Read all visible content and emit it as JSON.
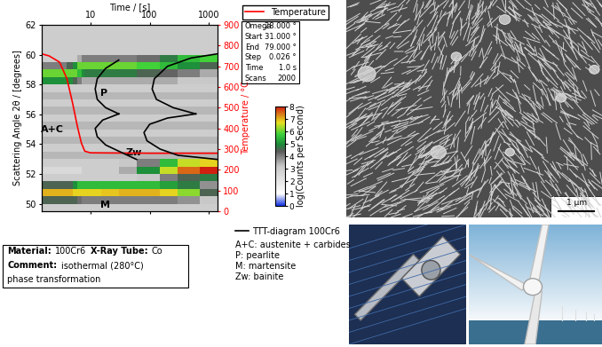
{
  "chart_data": {
    "type": "heatmap",
    "x_label": "Time / [s]",
    "y_label": "Scattering Angle 2θ / [degrees]",
    "y2_label": "Temperature / °C",
    "log": "x",
    "xlim": [
      1.5,
      1400
    ],
    "xticks": [
      10,
      100,
      1000
    ],
    "ylim": [
      49.5,
      62
    ],
    "yticks": [
      50,
      52,
      54,
      56,
      58,
      60,
      62
    ],
    "y2lim": [
      0,
      900
    ],
    "y2ticks": [
      0,
      100,
      200,
      300,
      400,
      500,
      600,
      700,
      800,
      900
    ],
    "heatmap": {
      "x_edges": [
        1.5,
        2,
        3,
        4,
        5,
        6,
        7,
        8,
        10,
        15,
        30,
        60,
        150,
        300,
        700,
        1400
      ],
      "y_edges": [
        49.5,
        50,
        50.5,
        51,
        51.5,
        52,
        52.5,
        53,
        53.5,
        54,
        54.5,
        55,
        55.5,
        56,
        56.5,
        57,
        57.5,
        58,
        58.5,
        59,
        59.5,
        60,
        60.5,
        61,
        61.5,
        62
      ],
      "cells": [
        [
          3,
          3,
          3,
          3,
          3,
          3,
          3,
          3,
          3,
          3,
          3,
          3,
          3,
          3,
          3
        ],
        [
          4.5,
          4.5,
          4.5,
          4.5,
          4.5,
          4.2,
          4,
          4,
          4,
          4,
          4,
          4,
          4,
          3.8,
          3.2
        ],
        [
          7,
          7,
          7,
          7,
          6.8,
          6.8,
          6.8,
          6.8,
          6.8,
          6.9,
          7,
          7,
          6.8,
          6.2,
          4.5
        ],
        [
          4.5,
          4.5,
          4.5,
          4.5,
          5,
          5.5,
          5.5,
          5.5,
          5.5,
          5.5,
          5.5,
          5.5,
          5.2,
          4.8,
          3.8
        ],
        [
          3,
          3,
          3,
          3,
          3,
          3,
          3,
          3,
          3,
          3,
          3,
          3.2,
          4,
          4.5,
          4.8
        ],
        [
          2.5,
          2.5,
          2.5,
          2.5,
          2.5,
          2.5,
          3,
          3,
          3,
          3,
          3.5,
          5,
          6.5,
          7.5,
          8
        ],
        [
          3,
          3,
          3,
          3,
          3,
          3,
          3,
          3,
          3,
          3,
          3.2,
          4,
          5.5,
          6.5,
          6.8
        ],
        [
          3.4,
          3.4,
          3.4,
          3.4,
          3.4,
          3.4,
          3.4,
          3.4,
          3.4,
          3.4,
          3.4,
          3.4,
          3.4,
          3.4,
          3.4
        ],
        [
          3,
          3,
          3,
          3,
          3,
          3,
          3,
          3,
          3,
          3,
          3,
          3,
          3,
          3,
          3
        ],
        [
          3.4,
          3.4,
          3.4,
          3.4,
          3.4,
          3.4,
          3.4,
          3.4,
          3.4,
          3.4,
          3.4,
          3.4,
          3.4,
          3.4,
          3.4
        ],
        [
          3,
          3,
          3,
          3,
          3,
          3,
          3,
          3,
          3,
          3,
          3,
          3,
          3,
          3,
          3
        ],
        [
          3.4,
          3.4,
          3.4,
          3.4,
          3.4,
          3.4,
          3.4,
          3.4,
          3.4,
          3.4,
          3.4,
          3.4,
          3.4,
          3.4,
          3.4
        ],
        [
          3,
          3,
          3,
          3,
          3,
          3,
          3,
          3,
          3,
          3,
          3,
          3,
          3,
          3,
          3
        ],
        [
          3.4,
          3.4,
          3.4,
          3.4,
          3.4,
          3.4,
          3.4,
          3.4,
          3.4,
          3.4,
          3.4,
          3.4,
          3.4,
          3.4,
          3.4
        ],
        [
          3,
          3,
          3,
          3,
          3,
          3,
          3,
          3,
          3,
          3,
          3,
          3,
          3,
          3,
          3
        ],
        [
          3.4,
          3.4,
          3.4,
          3.4,
          3.4,
          3.4,
          3.4,
          3.4,
          3.4,
          3.4,
          3.4,
          3.4,
          3.4,
          3.4,
          3.4
        ],
        [
          3,
          3,
          3,
          3,
          3,
          3,
          3,
          3,
          3,
          3,
          3,
          3,
          3,
          3,
          3
        ],
        [
          5,
          5,
          5,
          5,
          4.5,
          4,
          3.5,
          3.5,
          3.5,
          3.5,
          3.5,
          3.5,
          3.5,
          3.2,
          3.2
        ],
        [
          6,
          6,
          6,
          6,
          6,
          5.5,
          5,
          4.8,
          4.8,
          4.8,
          4.8,
          4.5,
          4.3,
          4,
          3.5
        ],
        [
          4,
          4,
          4,
          4.5,
          5,
          6,
          6,
          6,
          6,
          6,
          6,
          5.8,
          5.5,
          5,
          4.5
        ],
        [
          3,
          3,
          3,
          3,
          3,
          3.5,
          4,
          4,
          4,
          4,
          4,
          4.2,
          4.8,
          5.5,
          5.8
        ],
        [
          3,
          3,
          3,
          3,
          3,
          3,
          3,
          3,
          3,
          3,
          3,
          3,
          3,
          3,
          3
        ],
        [
          3,
          3,
          3,
          3,
          3,
          3,
          3,
          3,
          3,
          3,
          3,
          3,
          3,
          3,
          3
        ],
        [
          3,
          3,
          3,
          3,
          3,
          3,
          3,
          3,
          3,
          3,
          3,
          3,
          3,
          3,
          3
        ],
        [
          3,
          3,
          3,
          3,
          3,
          3,
          3,
          3,
          3,
          3,
          3,
          3,
          3,
          3,
          3
        ]
      ],
      "clim": [
        0,
        8
      ],
      "cticks": [
        0,
        1,
        2,
        3,
        4,
        5,
        6,
        7,
        8
      ],
      "colorbar_label": "log(Counts per Second)"
    },
    "series": [
      {
        "name": "Temperature",
        "color": "#ff0000",
        "axis": "y2",
        "line_style": "solid",
        "x": [
          1.5,
          2,
          3,
          4,
          5,
          6,
          7,
          8,
          10,
          100,
          1400
        ],
        "values": [
          760,
          750,
          720,
          640,
          520,
          410,
          330,
          290,
          282,
          280,
          280
        ]
      },
      {
        "name": "TTT-diagram 100Cr6",
        "color": "#000000",
        "axis": "y2",
        "line_style": "solid",
        "x": [
          30,
          18,
          13,
          12,
          13,
          18,
          30,
          null,
          1400,
          500,
          200,
          120,
          110,
          130,
          250,
          600,
          null,
          30,
          16,
          12,
          13,
          18,
          30,
          60,
          null,
          600,
          200,
          100,
          80,
          90,
          150,
          300,
          1400
        ],
        "values": [
          730,
          690,
          640,
          590,
          540,
          500,
          470,
          null,
          760,
          740,
          700,
          640,
          590,
          540,
          500,
          470,
          null,
          470,
          440,
          400,
          360,
          320,
          290,
          250,
          null,
          470,
          450,
          420,
          380,
          340,
          300,
          270,
          250
        ]
      }
    ],
    "annotations": [
      {
        "text": "A+C",
        "x": 2.3,
        "y": 55.0
      },
      {
        "text": "P",
        "x": 16.7,
        "y": 57.4
      },
      {
        "text": "Zw",
        "x": 54,
        "y": 53.4
      },
      {
        "text": "M",
        "x": 18,
        "y": 49.9
      }
    ]
  },
  "info_box": {
    "rows": [
      [
        "Omega",
        "28.000 °"
      ],
      [
        "Start",
        "31.000 °"
      ],
      [
        "End",
        "79.000 °"
      ],
      [
        "Step",
        "0.026 °"
      ],
      [
        "Time",
        "1.0 s"
      ],
      [
        "Scans",
        "2000"
      ]
    ]
  },
  "material_box": {
    "rows": [
      [
        {
          "text": "Material:",
          "bold": true
        },
        {
          "text": "100Cr6"
        },
        {
          "text": "X-Ray Tube:",
          "bold": true
        },
        {
          "text": "Co"
        }
      ],
      [
        {
          "text": "Comment:",
          "bold": true
        },
        {
          "text": "isothermal (280°C)"
        }
      ],
      [
        {
          "text": "phase transformation"
        }
      ]
    ]
  },
  "key": {
    "entries": [
      "A+C: austenite + carbides",
      "P: pearlite",
      "M: martensite",
      "Zw: bainite"
    ]
  },
  "micrograph": {
    "scale_bar": "1 µm"
  }
}
